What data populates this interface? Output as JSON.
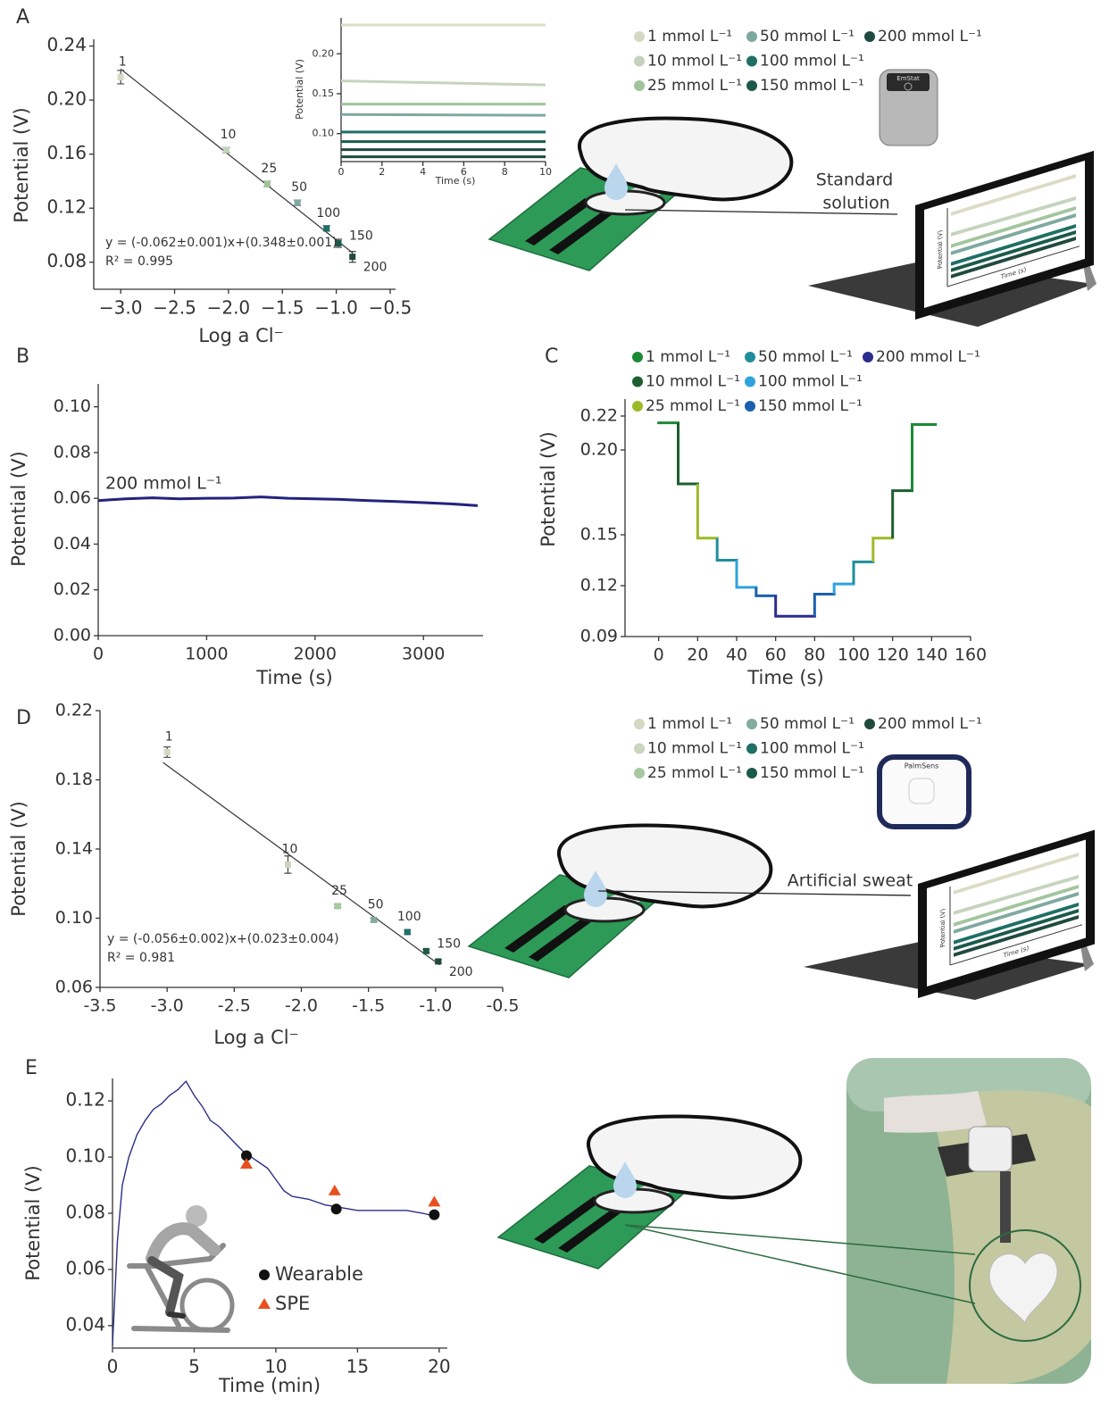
{
  "panel_letters": [
    "A",
    "B",
    "C",
    "D",
    "E"
  ],
  "illustrations": {
    "a_label": [
      "Standard",
      "solution"
    ],
    "d_label": "Artificial sweat",
    "a_device": "EmStat",
    "d_device": "PalmSens",
    "screen_ylabel": "Potential (V)",
    "screen_xlabel": "Time (s)"
  },
  "chart_data": [
    {
      "type": "scatter",
      "xlabel": "Log a Cl⁻",
      "ylabel": "Potential (V)",
      "xlim": [
        -3.25,
        -0.45
      ],
      "xticks": [
        {
          "value": -3,
          "label": "−3.0"
        },
        {
          "value": -2.5,
          "label": "−2.5"
        },
        {
          "value": -2,
          "label": "−2.0"
        },
        {
          "value": -1.5,
          "label": "−1.5"
        },
        {
          "value": -1,
          "label": "−1.0"
        },
        {
          "value": -0.5,
          "label": "−0.5"
        }
      ],
      "ylim": [
        0.06,
        0.245
      ],
      "yticks": [
        0.08,
        0.12,
        0.16,
        {
          "value": 0.2,
          "label": "0.20"
        },
        0.24
      ],
      "series": [
        {
          "name": "1 mmol L⁻¹",
          "color": "#d6d8c2",
          "x": [
            -3.0
          ],
          "values": [
            0.217
          ],
          "errors": [
            0.005
          ],
          "point_label": "1"
        },
        {
          "name": "10 mmol L⁻¹",
          "color": "#c3d3bb",
          "x": [
            -2.02
          ],
          "values": [
            0.163
          ],
          "errors": [
            0.002
          ],
          "point_label": "10"
        },
        {
          "name": "25 mmol L⁻¹",
          "color": "#a1c49b",
          "x": [
            -1.64
          ],
          "values": [
            0.138
          ],
          "errors": [
            0.002
          ],
          "point_label": "25"
        },
        {
          "name": "50 mmol L⁻¹",
          "color": "#7ea89e",
          "x": [
            -1.36
          ],
          "values": [
            0.124
          ],
          "errors": [
            0.002
          ],
          "point_label": "50"
        },
        {
          "name": "100 mmol L⁻¹",
          "color": "#1e6f66",
          "x": [
            -1.09
          ],
          "values": [
            0.105
          ],
          "errors": [
            0.002
          ],
          "point_label": "100"
        },
        {
          "name": "150 mmol L⁻¹",
          "color": "#1b5a4a",
          "x": [
            -0.98
          ],
          "values": [
            0.094
          ],
          "errors": [
            0.003
          ],
          "point_label": "150"
        },
        {
          "name": "200 mmol L⁻¹",
          "color": "#204a3d",
          "x": [
            -0.85
          ],
          "values": [
            0.084
          ],
          "errors": [
            0.004
          ],
          "point_label": "200"
        }
      ],
      "fit": {
        "x": [
          -3.0,
          -0.85
        ],
        "y": [
          0.223,
          0.087
        ]
      },
      "equation": "y = (-0.062±0.001)x+(0.348±0.001)",
      "r2": "R² = 0.995"
    },
    {
      "type": "line",
      "xlabel": "Time (s)",
      "ylabel": "Potential (V)",
      "xlim": [
        0,
        10
      ],
      "xticks": [
        0,
        2,
        4,
        6,
        8,
        10
      ],
      "ylim": [
        0.065,
        0.245
      ],
      "yticks": [
        {
          "value": 0.1,
          "label": "0.10"
        },
        0.15,
        {
          "value": 0.2,
          "label": "0.20"
        }
      ],
      "series": [
        {
          "color": "#dcdcc6",
          "x": [
            0,
            10
          ],
          "values": [
            0.236,
            0.236
          ]
        },
        {
          "color": "#c5d4bd",
          "x": [
            0,
            10
          ],
          "values": [
            0.166,
            0.161
          ]
        },
        {
          "color": "#a3c59d",
          "x": [
            0,
            10
          ],
          "values": [
            0.137,
            0.137
          ]
        },
        {
          "color": "#7fa99f",
          "x": [
            0,
            10
          ],
          "values": [
            0.124,
            0.123
          ]
        },
        {
          "color": "#1e6f66",
          "x": [
            0,
            10
          ],
          "values": [
            0.102,
            0.102
          ]
        },
        {
          "color": "#1b5a4a",
          "x": [
            0,
            10
          ],
          "values": [
            0.09,
            0.09
          ]
        },
        {
          "color": "#204a3d",
          "x": [
            0,
            10
          ],
          "values": [
            0.08,
            0.08
          ]
        },
        {
          "color": "#1d4a3c",
          "x": [
            0,
            10
          ],
          "values": [
            0.071,
            0.071
          ]
        }
      ]
    },
    {
      "type": "line",
      "xlabel": "Time (s)",
      "ylabel": "Potential (V)",
      "xlim": [
        0,
        3550
      ],
      "xticks": [
        0,
        1000,
        2000,
        3000
      ],
      "ylim": [
        0,
        0.11
      ],
      "yticks": [
        {
          "value": 0,
          "label": "0.00"
        },
        0.02,
        0.04,
        0.06,
        0.08,
        {
          "value": 0.1,
          "label": "0.10"
        }
      ],
      "annotation": "200 mmol L⁻¹",
      "series": [
        {
          "color": "#23237e",
          "x": [
            0,
            250,
            500,
            750,
            1000,
            1250,
            1500,
            1750,
            2000,
            2250,
            2500,
            2750,
            3000,
            3250,
            3500
          ],
          "values": [
            0.059,
            0.0598,
            0.0602,
            0.0598,
            0.06,
            0.0601,
            0.0606,
            0.06,
            0.0598,
            0.0595,
            0.059,
            0.0586,
            0.0581,
            0.0576,
            0.0568
          ]
        }
      ]
    },
    {
      "type": "step",
      "xlabel": "Time (s)",
      "ylabel": "Potential (V)",
      "xlim": [
        -20,
        160
      ],
      "xticks": [
        0,
        20,
        40,
        60,
        80,
        100,
        120,
        140,
        160
      ],
      "ylim": [
        0.09,
        0.23
      ],
      "yticks": [
        0.09,
        0.12,
        0.15,
        {
          "value": 0.2,
          "label": "0.20"
        },
        0.22
      ],
      "series": [
        {
          "name": "1 mmol L⁻¹",
          "color": "#1b8a36",
          "steps": [
            {
              "x": [
                0,
                10
              ],
              "value": 0.216
            },
            {
              "x": [
                130,
                142
              ],
              "value": 0.215
            }
          ]
        },
        {
          "name": "10 mmol L⁻¹",
          "color": "#1d5e2e",
          "steps": [
            {
              "x": [
                10,
                20
              ],
              "value": 0.18
            },
            {
              "x": [
                120,
                130
              ],
              "value": 0.176
            }
          ]
        },
        {
          "name": "25 mmol L⁻¹",
          "color": "#9bbb26",
          "steps": [
            {
              "x": [
                20,
                30
              ],
              "value": 0.148
            },
            {
              "x": [
                110,
                120
              ],
              "value": 0.148
            }
          ]
        },
        {
          "name": "50 mmol L⁻¹",
          "color": "#1e8e9b",
          "steps": [
            {
              "x": [
                30,
                40
              ],
              "value": 0.135
            },
            {
              "x": [
                100,
                110
              ],
              "value": 0.134
            }
          ]
        },
        {
          "name": "100 mmol L⁻¹",
          "color": "#2ea3dd",
          "steps": [
            {
              "x": [
                40,
                50
              ],
              "value": 0.119
            },
            {
              "x": [
                90,
                100
              ],
              "value": 0.121
            }
          ]
        },
        {
          "name": "150 mmol L⁻¹",
          "color": "#1c5fb0",
          "steps": [
            {
              "x": [
                50,
                60
              ],
              "value": 0.114
            },
            {
              "x": [
                80,
                90
              ],
              "value": 0.115
            }
          ]
        },
        {
          "name": "200 mmol L⁻¹",
          "color": "#2b2d8e",
          "steps": [
            {
              "x": [
                60,
                80
              ],
              "value": 0.102
            }
          ]
        }
      ]
    },
    {
      "type": "scatter",
      "xlabel": "Log a Cl⁻",
      "ylabel": "Potential (V)",
      "xlim": [
        -3.5,
        -0.5
      ],
      "xticks": [
        -3.5,
        {
          "value": -3,
          "label": "-3.0"
        },
        -2.5,
        {
          "value": -2,
          "label": "-2.0"
        },
        -1.5,
        {
          "value": -1,
          "label": "-1.0"
        },
        -0.5
      ],
      "ylim": [
        0.06,
        0.22
      ],
      "yticks": [
        0.06,
        {
          "value": 0.1,
          "label": "0.10"
        },
        0.14,
        0.18,
        0.22
      ],
      "series": [
        {
          "name": "1 mmol L⁻¹",
          "color": "#d6d8c2",
          "x": [
            -3.0
          ],
          "values": [
            0.196
          ],
          "errors": [
            0.003
          ],
          "point_label": "1"
        },
        {
          "name": "10 mmol L⁻¹",
          "color": "#c9d5bf",
          "x": [
            -2.1
          ],
          "values": [
            0.131
          ],
          "errors": [
            0.005
          ],
          "point_label": "10"
        },
        {
          "name": "25 mmol L⁻¹",
          "color": "#a7c8a1",
          "x": [
            -1.73
          ],
          "values": [
            0.107
          ],
          "errors": [
            0.001
          ],
          "point_label": "25"
        },
        {
          "name": "50 mmol L⁻¹",
          "color": "#84ab9f",
          "x": [
            -1.46
          ],
          "values": [
            0.099
          ],
          "errors": [
            0.001
          ],
          "point_label": "50"
        },
        {
          "name": "100 mmol L⁻¹",
          "color": "#1e6f66",
          "x": [
            -1.21
          ],
          "values": [
            0.092
          ],
          "errors": [
            0.001
          ],
          "point_label": "100"
        },
        {
          "name": "150 mmol L⁻¹",
          "color": "#1b5a4a",
          "x": [
            -1.07
          ],
          "values": [
            0.081
          ],
          "errors": [
            0.001
          ],
          "point_label": "150"
        },
        {
          "name": "200 mmol L⁻¹",
          "color": "#204a3d",
          "x": [
            -0.98
          ],
          "values": [
            0.075
          ],
          "errors": [
            0.001
          ],
          "point_label": "200"
        }
      ],
      "fit": {
        "x": [
          -3.03,
          -0.97
        ],
        "y": [
          0.19,
          0.073
        ]
      },
      "equation": "y = (-0.056±0.002)x+(0.023±0.004)",
      "r2": "R² = 0.981"
    },
    {
      "type": "line",
      "xlabel": "Time (min)",
      "ylabel": "Potential (V)",
      "xlim": [
        0,
        20.5
      ],
      "xticks": [
        0,
        5,
        10,
        15,
        20
      ],
      "ylim": [
        0.032,
        0.128
      ],
      "yticks": [
        0.04,
        0.06,
        0.08,
        {
          "value": 0.1,
          "label": "0.10"
        },
        0.12
      ],
      "series": [
        {
          "color": "#2b2f86",
          "x": [
            0,
            0.3,
            0.6,
            1,
            1.5,
            2,
            2.5,
            3,
            3.5,
            4,
            4.5,
            5,
            5.5,
            6,
            6.5,
            7,
            7.5,
            8,
            8.5,
            9,
            9.5,
            10,
            10.5,
            11,
            12,
            13,
            14,
            15,
            16,
            17,
            18,
            19,
            19.7
          ],
          "values": [
            0.033,
            0.07,
            0.09,
            0.1,
            0.108,
            0.113,
            0.117,
            0.119,
            0.122,
            0.124,
            0.127,
            0.122,
            0.118,
            0.113,
            0.111,
            0.108,
            0.105,
            0.102,
            0.1,
            0.098,
            0.096,
            0.092,
            0.088,
            0.086,
            0.085,
            0.083,
            0.082,
            0.081,
            0.081,
            0.081,
            0.081,
            0.08,
            0.079
          ]
        },
        {
          "name": "Wearable",
          "color": "#111111",
          "marker": "circle",
          "x": [
            8.2,
            13.7,
            19.7
          ],
          "values": [
            0.1005,
            0.0815,
            0.0795
          ]
        },
        {
          "name": "SPE",
          "color": "#e8501e",
          "marker": "triangle",
          "x": [
            8.2,
            13.6,
            19.7
          ],
          "values": [
            0.0975,
            0.088,
            0.084
          ]
        }
      ]
    }
  ]
}
